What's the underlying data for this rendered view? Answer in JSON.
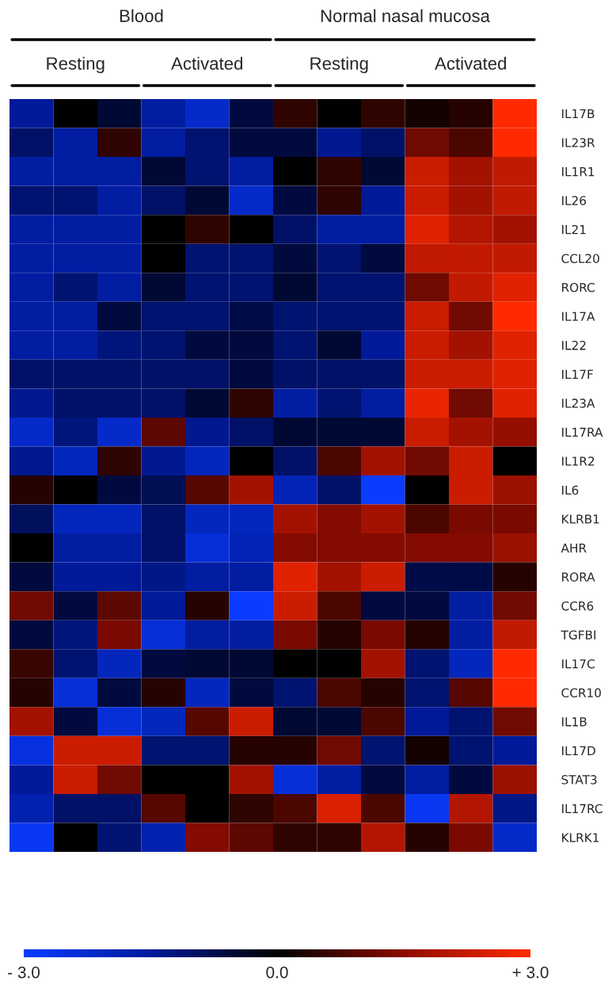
{
  "chart_data": {
    "type": "heatmap",
    "annotations": [
      "Blood",
      "Normal nasal mucosa",
      "Resting",
      "Activated",
      "Resting",
      "Activated"
    ],
    "categories": [
      null,
      null,
      null,
      null,
      null,
      null,
      null,
      null,
      null,
      null,
      null,
      null
    ],
    "y_categories": [
      "IL17B",
      "IL23R",
      "IL1R1",
      "IL26",
      "IL21",
      "CCL20",
      "RORC",
      "IL17A",
      "IL22",
      "IL17F",
      "IL23A",
      "IL17RA",
      "IL1R2",
      "IL6",
      "KLRB1",
      "AHR",
      "RORA",
      "CCR6",
      "TGFBI",
      "IL17C",
      "CCR10",
      "IL1B",
      "IL17D",
      "STAT3",
      "IL17RC",
      "KLRK1"
    ],
    "cells": [
      [
        -1.5,
        0,
        -0.5,
        -1.6,
        -2.2,
        -0.6,
        0.5,
        0,
        0.5,
        0.2,
        0.4,
        3
      ],
      [
        -1.0,
        -1.6,
        0.5,
        -1.6,
        -1.1,
        -0.6,
        -0.6,
        -1.4,
        -1.0,
        1.2,
        0.8,
        3
      ],
      [
        -1.6,
        -1.6,
        -1.6,
        -0.5,
        -1.1,
        -1.6,
        0,
        0.5,
        -0.5,
        2.3,
        1.8,
        2.2
      ],
      [
        -1.1,
        -1.1,
        -1.6,
        -1.0,
        -0.5,
        -2.2,
        -0.6,
        0.5,
        -1.5,
        2.3,
        1.8,
        2.2
      ],
      [
        -1.6,
        -1.6,
        -1.6,
        0,
        0.5,
        0,
        -1.0,
        -1.6,
        -1.6,
        2.6,
        2.0,
        1.8
      ],
      [
        -1.6,
        -1.6,
        -1.6,
        0,
        -1.1,
        -1.1,
        -0.6,
        -1.1,
        -0.6,
        2.2,
        2.2,
        2.2
      ],
      [
        -1.6,
        -1.1,
        -1.6,
        -0.5,
        -1.1,
        -1.1,
        -0.5,
        -1.1,
        -1.1,
        1.2,
        2.2,
        2.6
      ],
      [
        -1.6,
        -1.6,
        -0.6,
        -1.1,
        -1.1,
        -0.7,
        -1.1,
        -1.1,
        -1.1,
        2.3,
        1.2,
        3
      ],
      [
        -1.6,
        -1.6,
        -1.2,
        -1.1,
        -0.6,
        -0.6,
        -1.1,
        -0.5,
        -1.5,
        2.3,
        1.8,
        2.6
      ],
      [
        -1.0,
        -1.0,
        -1.0,
        -1.0,
        -1.0,
        -0.6,
        -1.0,
        -1.0,
        -1.0,
        2.3,
        2.3,
        2.6
      ],
      [
        -1.4,
        -1.0,
        -1.0,
        -1.0,
        -0.5,
        0.5,
        -1.6,
        -1.1,
        -1.6,
        2.7,
        1.2,
        2.6
      ],
      [
        -2.2,
        -1.2,
        -2.2,
        1.0,
        -1.4,
        -1.0,
        -0.5,
        -0.5,
        -0.5,
        2.3,
        1.8,
        1.6
      ],
      [
        -1.4,
        -2.0,
        0.5,
        -1.4,
        -2.0,
        0,
        -1.0,
        0.8,
        1.8,
        1.2,
        2.3,
        0
      ],
      [
        0.4,
        0,
        -0.6,
        -0.8,
        0.9,
        1.8,
        -1.9,
        -1.0,
        -3.0,
        0,
        2.3,
        1.7
      ],
      [
        -0.9,
        -2.0,
        -2.0,
        -1.0,
        -2.0,
        -2.0,
        1.8,
        1.4,
        1.8,
        0.8,
        1.3,
        1.3
      ],
      [
        0,
        -1.6,
        -1.6,
        -1.0,
        -2.4,
        -1.9,
        1.4,
        1.4,
        1.4,
        1.4,
        1.4,
        1.7
      ],
      [
        -0.6,
        -1.5,
        -1.5,
        -1.3,
        -1.6,
        -1.6,
        2.6,
        1.8,
        2.3,
        -0.7,
        -0.7,
        0.4
      ],
      [
        1.2,
        -0.6,
        1.0,
        -1.5,
        0.4,
        -3.0,
        2.3,
        0.8,
        -0.6,
        -0.6,
        -1.6,
        1.2
      ],
      [
        -0.6,
        -1.2,
        1.3,
        -2.4,
        -1.6,
        -1.6,
        1.3,
        0.4,
        1.3,
        0.4,
        -1.6,
        2.2
      ],
      [
        0.6,
        -1.1,
        -2.0,
        -0.6,
        -0.5,
        -0.5,
        0,
        0,
        1.8,
        -1.1,
        -2.0,
        3
      ],
      [
        0.4,
        -2.4,
        -0.6,
        0.4,
        -2.0,
        -0.6,
        -1.1,
        0.8,
        0.4,
        -1.1,
        0.9,
        3
      ],
      [
        1.8,
        -0.6,
        -2.4,
        -2.0,
        0.9,
        2.3,
        -0.5,
        -0.5,
        0.8,
        -1.5,
        -1.1,
        1.2
      ],
      [
        -2.5,
        2.3,
        2.3,
        -1.1,
        -1.1,
        0.4,
        0.4,
        1.2,
        -1.1,
        0.2,
        -1.1,
        -1.5
      ],
      [
        -1.5,
        2.3,
        1.2,
        0,
        0,
        1.8,
        -2.4,
        -1.6,
        -0.6,
        -1.6,
        -0.6,
        1.7
      ],
      [
        -1.8,
        -1.0,
        -1.0,
        0.9,
        0,
        0.5,
        0.8,
        2.5,
        0.8,
        -2.8,
        2.0,
        -1.3
      ],
      [
        -2.8,
        0,
        -1.1,
        -1.8,
        1.4,
        1.0,
        0.5,
        0.5,
        2.0,
        0.4,
        1.3,
        -2.2
      ]
    ],
    "clim": [
      -3,
      3
    ],
    "cticks": [
      {
        "value": -3,
        "label": "- 3.0"
      },
      {
        "value": 0,
        "label": "0.0"
      },
      {
        "value": 3,
        "label": "+ 3.0"
      }
    ]
  }
}
